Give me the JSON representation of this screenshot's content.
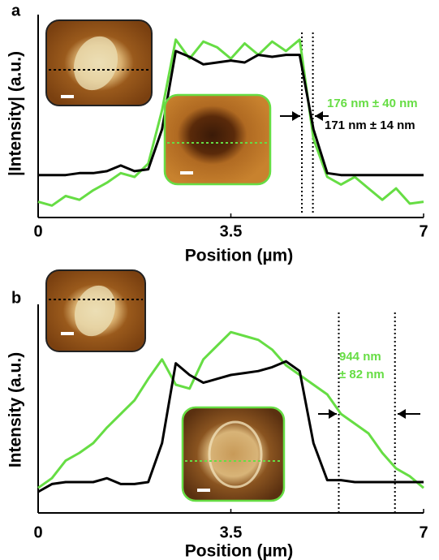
{
  "chart_data": [
    {
      "type": "line",
      "panel": "a",
      "x_label": "Position (µm)",
      "y_label": "|Intensity| (a.u.)",
      "xlim": [
        0,
        7
      ],
      "xticks": [
        0,
        3.5,
        7
      ],
      "ylim": [
        0,
        1
      ],
      "x": [
        0,
        0.25,
        0.5,
        0.75,
        1,
        1.25,
        1.5,
        1.75,
        2,
        2.25,
        2.5,
        2.75,
        3,
        3.25,
        3.5,
        3.75,
        4,
        4.25,
        4.5,
        4.75,
        5,
        5.25,
        5.5,
        5.75,
        6,
        6.25,
        6.5,
        6.75,
        7
      ],
      "series": [
        {
          "color": "#66dd44",
          "values": [
            0.07,
            0.05,
            0.1,
            0.08,
            0.13,
            0.17,
            0.22,
            0.2,
            0.27,
            0.55,
            0.92,
            0.82,
            0.91,
            0.88,
            0.82,
            0.9,
            0.84,
            0.91,
            0.86,
            0.92,
            0.4,
            0.2,
            0.16,
            0.2,
            0.14,
            0.08,
            0.14,
            0.06,
            0.07
          ]
        },
        {
          "color": "#000000",
          "values": [
            0.21,
            0.21,
            0.21,
            0.22,
            0.22,
            0.23,
            0.26,
            0.23,
            0.24,
            0.45,
            0.86,
            0.83,
            0.79,
            0.8,
            0.81,
            0.8,
            0.84,
            0.83,
            0.84,
            0.84,
            0.45,
            0.22,
            0.21,
            0.21,
            0.21,
            0.21,
            0.21,
            0.21,
            0.21
          ]
        }
      ],
      "markers": [
        4.79,
        4.99
      ],
      "annotations": [
        {
          "text": "176 nm ± 40 nm",
          "color": "#66dd44"
        },
        {
          "text": "171 nm ±  14 nm",
          "color": "#000000"
        }
      ]
    },
    {
      "type": "line",
      "panel": "b",
      "x_label": "Position (µm)",
      "y_label": "Intensity (a.u.)",
      "xlim": [
        0,
        7
      ],
      "xticks": [
        0,
        3.5,
        7
      ],
      "ylim": [
        0,
        1
      ],
      "x": [
        0,
        0.25,
        0.5,
        0.75,
        1,
        1.25,
        1.5,
        1.75,
        2,
        2.25,
        2.5,
        2.75,
        3,
        3.25,
        3.5,
        3.75,
        4,
        4.25,
        4.5,
        4.75,
        5,
        5.25,
        5.5,
        5.75,
        6,
        6.25,
        6.5,
        6.75,
        7
      ],
      "series": [
        {
          "color": "#66dd44",
          "values": [
            0.12,
            0.17,
            0.26,
            0.3,
            0.35,
            0.43,
            0.5,
            0.57,
            0.68,
            0.78,
            0.65,
            0.63,
            0.78,
            0.85,
            0.92,
            0.9,
            0.88,
            0.83,
            0.75,
            0.7,
            0.65,
            0.6,
            0.5,
            0.45,
            0.4,
            0.3,
            0.22,
            0.18,
            0.12
          ]
        },
        {
          "color": "#000000",
          "values": [
            0.1,
            0.14,
            0.15,
            0.15,
            0.15,
            0.17,
            0.14,
            0.14,
            0.15,
            0.35,
            0.76,
            0.7,
            0.66,
            0.68,
            0.7,
            0.71,
            0.72,
            0.74,
            0.77,
            0.72,
            0.35,
            0.16,
            0.16,
            0.15,
            0.15,
            0.15,
            0.15,
            0.15,
            0.15
          ]
        }
      ],
      "markers": [
        5.46,
        6.48
      ],
      "annotations": [
        {
          "text": "944 nm",
          "color": "#66dd44"
        },
        {
          "text": "± 82 nm",
          "color": "#66dd44"
        }
      ]
    }
  ]
}
